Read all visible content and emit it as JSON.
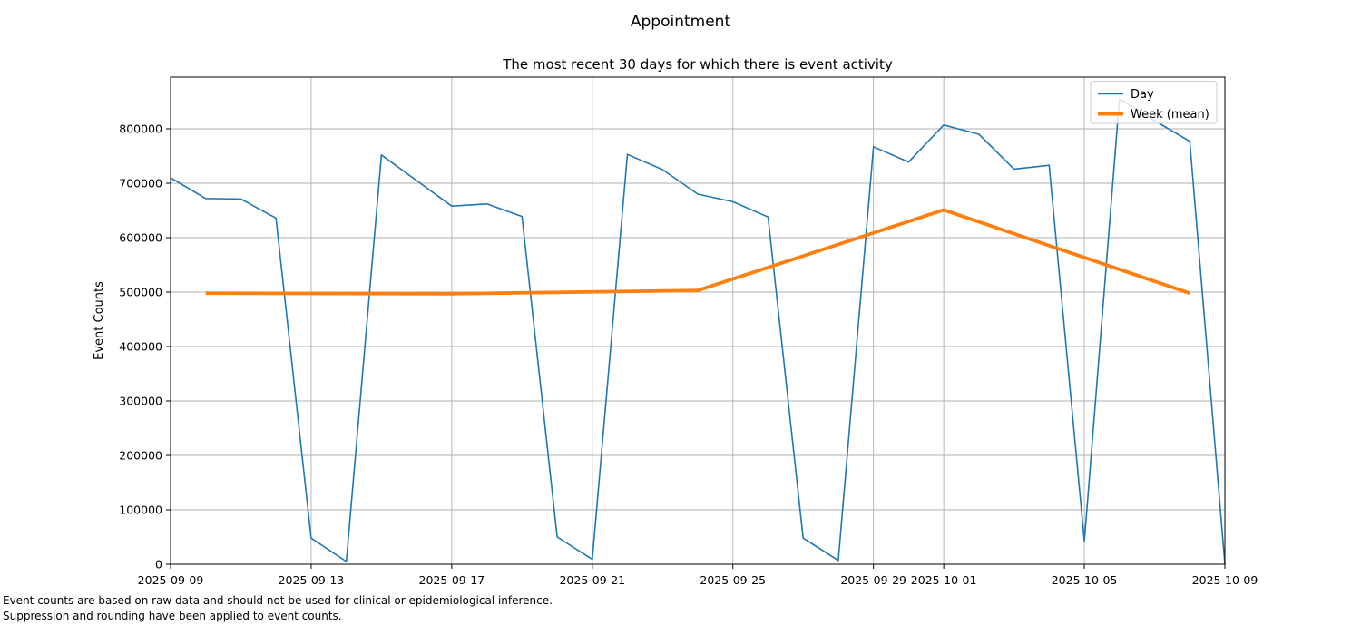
{
  "figure": {
    "title": "Appointment",
    "footnote_line1": "Event counts are based on raw data and should not be used for clinical or epidemiological inference.",
    "footnote_line2": "Suppression and rounding have been applied to event counts."
  },
  "colors": {
    "day_line": "#1f77b4",
    "week_line": "#ff7f0e",
    "grid": "#b0b0b0",
    "spine": "#000000",
    "legend_border": "#cccccc"
  },
  "chart_data": {
    "type": "line",
    "title": "The most recent 30 days for which there is event activity",
    "xlabel": "",
    "ylabel": "Event Counts",
    "x_range": [
      "2025-09-09",
      "2025-10-09"
    ],
    "ylim": [
      0,
      895000
    ],
    "grid": true,
    "legend_position": "upper right",
    "x_ticks": [
      "2025-09-09",
      "2025-09-13",
      "2025-09-17",
      "2025-09-21",
      "2025-09-25",
      "2025-09-29",
      "2025-10-01",
      "2025-10-05",
      "2025-10-09"
    ],
    "y_ticks": [
      0,
      100000,
      200000,
      300000,
      400000,
      500000,
      600000,
      700000,
      800000
    ],
    "series": [
      {
        "name": "Day",
        "color": "#1f77b4",
        "stroke_width": 1.6,
        "x": [
          "2025-09-09",
          "2025-09-10",
          "2025-09-11",
          "2025-09-12",
          "2025-09-13",
          "2025-09-14",
          "2025-09-15",
          "2025-09-16",
          "2025-09-17",
          "2025-09-18",
          "2025-09-19",
          "2025-09-20",
          "2025-09-21",
          "2025-09-22",
          "2025-09-23",
          "2025-09-24",
          "2025-09-25",
          "2025-09-26",
          "2025-09-27",
          "2025-09-28",
          "2025-09-29",
          "2025-09-30",
          "2025-10-01",
          "2025-10-02",
          "2025-10-03",
          "2025-10-04",
          "2025-10-05",
          "2025-10-06",
          "2025-10-07",
          "2025-10-08",
          "2025-10-09"
        ],
        "values": [
          710000,
          672000,
          671000,
          636000,
          48000,
          5000,
          752000,
          705000,
          658000,
          662000,
          639000,
          50000,
          9000,
          753000,
          725000,
          680000,
          666000,
          638000,
          48000,
          7000,
          767000,
          739000,
          807000,
          790000,
          726000,
          733000,
          42000,
          855000,
          815000,
          777000,
          0
        ]
      },
      {
        "name": "Week (mean)",
        "color": "#ff7f0e",
        "stroke_width": 3.8,
        "x": [
          "2025-09-10",
          "2025-09-17",
          "2025-09-24",
          "2025-10-01",
          "2025-10-08"
        ],
        "values": [
          498000,
          497000,
          503000,
          651000,
          498000
        ]
      }
    ]
  }
}
